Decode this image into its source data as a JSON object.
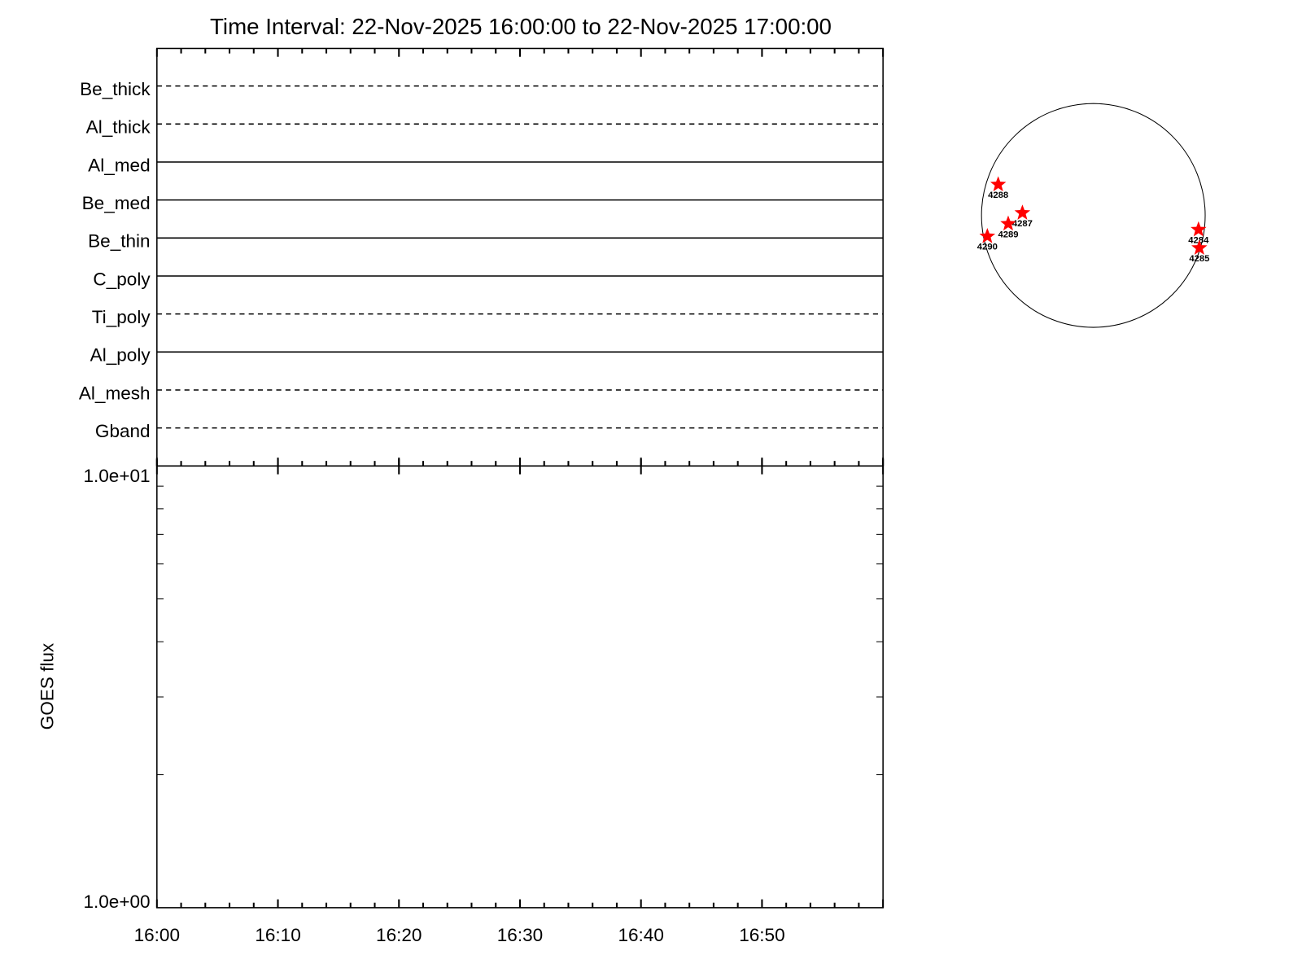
{
  "chart_data": [
    {
      "type": "line",
      "title": "Time Interval: 22-Nov-2025 16:00:00 to 22-Nov-2025 17:00:00",
      "channels": [
        {
          "name": "Be_thick",
          "style": "dashed"
        },
        {
          "name": "Al_thick",
          "style": "dashed"
        },
        {
          "name": "Al_med",
          "style": "solid"
        },
        {
          "name": "Be_med",
          "style": "solid"
        },
        {
          "name": "Be_thin",
          "style": "solid"
        },
        {
          "name": "C_poly",
          "style": "solid"
        },
        {
          "name": "Ti_poly",
          "style": "dashed"
        },
        {
          "name": "Al_poly",
          "style": "solid"
        },
        {
          "name": "Al_mesh",
          "style": "dashed"
        },
        {
          "name": "Gband",
          "style": "dashed"
        }
      ]
    },
    {
      "type": "line",
      "ylabel": "GOES flux",
      "yscale": "log",
      "ylim": [
        1,
        10
      ],
      "ytick_labels": [
        "1.0e+01",
        "1.0e+00"
      ],
      "xlim": [
        "16:00",
        "17:00"
      ],
      "xtick_labels": [
        "16:00",
        "16:10",
        "16:20",
        "16:30",
        "16:40",
        "16:50"
      ],
      "series": []
    },
    {
      "type": "scatter",
      "regions": [
        "4288",
        "4287",
        "4289",
        "4290",
        "4284",
        "4285"
      ],
      "marker_color": "#ff0000"
    }
  ]
}
